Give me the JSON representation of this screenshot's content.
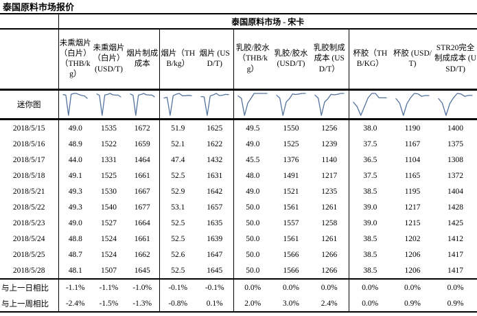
{
  "page_title": "泰国原料市场报价",
  "table": {
    "region_header": "泰国原料市场 - 宋卡",
    "sparkline_row_label": "迷你图",
    "sparkline_color": "#52729e",
    "columns": [
      "未熏烟片（白片）（THB/kg）",
      "未熏烟片（白片）(USD/T)",
      "烟片制成成本",
      "烟片（THB/kg）",
      "烟片 (USD/T)",
      "乳胶/胶水（THB/kg）",
      "乳胶/胶水 (USD/T)",
      "乳胶制成成本 (USD/T）",
      "杯胶（THB/KG）",
      "杯胶 (USD/T)",
      "STR20完全制成成本 (USD/T)"
    ],
    "rows": [
      {
        "date": "2018/5/15",
        "values": [
          "49.0",
          "1535",
          "1672",
          "51.9",
          "1625",
          "49.5",
          "1550",
          "1256",
          "38.0",
          "1190",
          "1400"
        ]
      },
      {
        "date": "2018/5/16",
        "values": [
          "48.9",
          "1522",
          "1659",
          "52.1",
          "1622",
          "49.0",
          "1525",
          "1239",
          "37.5",
          "1167",
          "1375"
        ]
      },
      {
        "date": "2018/5/17",
        "values": [
          "44.0",
          "1331",
          "1464",
          "47.4",
          "1432",
          "45.5",
          "1376",
          "1140",
          "36.5",
          "1104",
          "1308"
        ]
      },
      {
        "date": "2018/5/18",
        "values": [
          "49.1",
          "1525",
          "1661",
          "52.5",
          "1631",
          "48.0",
          "1491",
          "1217",
          "37.5",
          "1165",
          "1372"
        ]
      },
      {
        "date": "2018/5/21",
        "values": [
          "49.3",
          "1530",
          "1667",
          "52.9",
          "1642",
          "49.0",
          "1521",
          "1235",
          "38.5",
          "1195",
          "1404"
        ]
      },
      {
        "date": "2018/5/22",
        "values": [
          "49.3",
          "1540",
          "1677",
          "53.1",
          "1657",
          "50.0",
          "1561",
          "1261",
          "39.0",
          "1217",
          "1428"
        ]
      },
      {
        "date": "2018/5/23",
        "values": [
          "49.0",
          "1527",
          "1664",
          "52.5",
          "1635",
          "50.0",
          "1557",
          "1258",
          "39.0",
          "1215",
          "1425"
        ]
      },
      {
        "date": "2018/5/24",
        "values": [
          "48.8",
          "1524",
          "1661",
          "52.5",
          "1639",
          "50.0",
          "1561",
          "1261",
          "38.5",
          "1202",
          "1412"
        ]
      },
      {
        "date": "2018/5/25",
        "values": [
          "48.7",
          "1524",
          "1662",
          "52.6",
          "1647",
          "50.0",
          "1566",
          "1266",
          "38.5",
          "1206",
          "1417"
        ]
      },
      {
        "date": "2018/5/28",
        "values": [
          "48.1",
          "1507",
          "1645",
          "52.5",
          "1645",
          "50.0",
          "1566",
          "1266",
          "38.5",
          "1206",
          "1417"
        ]
      }
    ],
    "comparison_rows": [
      {
        "label": "与上一日相比",
        "values": [
          "-1.1%",
          "-1.1%",
          "-1.0%",
          "-0.1%",
          "-0.1%",
          "0.0%",
          "0.0%",
          "0.0%",
          "0.0%",
          "0.0%",
          "0.0%"
        ]
      },
      {
        "label": "与上一周相比",
        "values": [
          "-2.4%",
          "-1.5%",
          "-1.3%",
          "-0.8%",
          "0.1%",
          "2.0%",
          "3.0%",
          "2.4%",
          "0.0%",
          "0.9%",
          "0.9%"
        ]
      }
    ]
  }
}
